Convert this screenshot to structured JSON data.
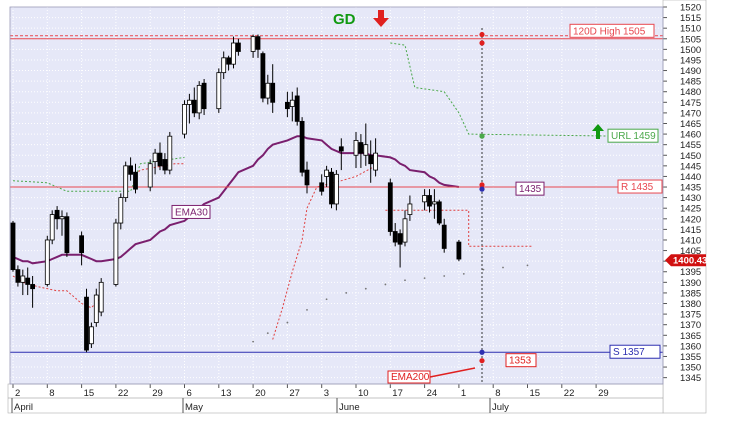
{
  "chart_data": {
    "type": "candlestick",
    "title": "",
    "xlabel": "",
    "ylabel": "",
    "ylim": [
      1342,
      1520
    ],
    "y_ticks": [
      1345,
      1350,
      1355,
      1360,
      1365,
      1370,
      1375,
      1380,
      1385,
      1390,
      1395,
      1400,
      1405,
      1410,
      1415,
      1420,
      1425,
      1430,
      1435,
      1440,
      1445,
      1450,
      1455,
      1460,
      1465,
      1470,
      1475,
      1480,
      1485,
      1490,
      1495,
      1500,
      1505,
      1510,
      1515,
      1520
    ],
    "x_day_labels": [
      "2",
      "8",
      "15",
      "22",
      "29",
      "6",
      "13",
      "20",
      "27",
      "3",
      "10",
      "17",
      "24",
      "1",
      "8",
      "15",
      "22",
      "29"
    ],
    "x_month_labels": [
      "April",
      "May",
      "June",
      "July"
    ],
    "grid": true,
    "colors": {
      "background": "#e6e8f8",
      "grid": "#ffffff",
      "price_line": "#e8474f",
      "support_line": "#2d2fb0",
      "ema": "#7a1f6e",
      "trailing_upper": "#4aa84a",
      "trailing_lower": "#e04040",
      "scatter": "#777777",
      "bullish": "#ffffff",
      "bearish": "#000000",
      "signal_up": "#119911",
      "signal_down": "#e02020"
    },
    "candles": [
      {
        "o": 1418,
        "h": 1419,
        "l": 1395,
        "c": 1396
      },
      {
        "o": 1396,
        "h": 1398,
        "l": 1388,
        "c": 1390
      },
      {
        "o": 1390,
        "h": 1396,
        "l": 1384,
        "c": 1393
      },
      {
        "o": 1392,
        "h": 1397,
        "l": 1384,
        "c": 1389
      },
      {
        "o": 1389,
        "h": 1393,
        "l": 1378,
        "c": 1387
      },
      {
        "o": 1389,
        "h": 1412,
        "l": 1388,
        "c": 1410
      },
      {
        "o": 1410,
        "h": 1424,
        "l": 1408,
        "c": 1422
      },
      {
        "o": 1424,
        "h": 1426,
        "l": 1415,
        "c": 1420
      },
      {
        "o": 1420,
        "h": 1424,
        "l": 1412,
        "c": 1421
      },
      {
        "o": 1421,
        "h": 1423,
        "l": 1402,
        "c": 1404
      },
      {
        "o": 1412,
        "h": 1414,
        "l": 1398,
        "c": 1404
      },
      {
        "o": 1383,
        "h": 1387,
        "l": 1357,
        "c": 1358
      },
      {
        "o": 1361,
        "h": 1371,
        "l": 1359,
        "c": 1369
      },
      {
        "o": 1371,
        "h": 1387,
        "l": 1369,
        "c": 1384
      },
      {
        "o": 1376,
        "h": 1392,
        "l": 1374,
        "c": 1390
      },
      {
        "o": 1389,
        "h": 1420,
        "l": 1388,
        "c": 1418
      },
      {
        "o": 1418,
        "h": 1432,
        "l": 1415,
        "c": 1430
      },
      {
        "o": 1430,
        "h": 1447,
        "l": 1428,
        "c": 1445
      },
      {
        "o": 1445,
        "h": 1449,
        "l": 1438,
        "c": 1441
      },
      {
        "o": 1442,
        "h": 1446,
        "l": 1432,
        "c": 1434
      },
      {
        "o": 1435,
        "h": 1448,
        "l": 1433,
        "c": 1446
      },
      {
        "o": 1447,
        "h": 1453,
        "l": 1441,
        "c": 1451
      },
      {
        "o": 1451,
        "h": 1456,
        "l": 1443,
        "c": 1445
      },
      {
        "o": 1448,
        "h": 1451,
        "l": 1441,
        "c": 1443
      },
      {
        "o": 1443,
        "h": 1461,
        "l": 1441,
        "c": 1459
      },
      {
        "o": 1460,
        "h": 1476,
        "l": 1458,
        "c": 1474
      },
      {
        "o": 1474,
        "h": 1479,
        "l": 1465,
        "c": 1476
      },
      {
        "o": 1476,
        "h": 1482,
        "l": 1468,
        "c": 1470
      },
      {
        "o": 1470,
        "h": 1485,
        "l": 1467,
        "c": 1483
      },
      {
        "o": 1484,
        "h": 1486,
        "l": 1469,
        "c": 1472
      },
      {
        "o": 1472,
        "h": 1491,
        "l": 1470,
        "c": 1489
      },
      {
        "o": 1489,
        "h": 1499,
        "l": 1486,
        "c": 1496
      },
      {
        "o": 1496,
        "h": 1497,
        "l": 1490,
        "c": 1493
      },
      {
        "o": 1493,
        "h": 1506,
        "l": 1491,
        "c": 1503
      },
      {
        "o": 1503,
        "h": 1505,
        "l": 1497,
        "c": 1499
      },
      {
        "o": 1499,
        "h": 1507,
        "l": 1496,
        "c": 1506
      },
      {
        "o": 1506,
        "h": 1507,
        "l": 1496,
        "c": 1500
      },
      {
        "o": 1498,
        "h": 1499,
        "l": 1475,
        "c": 1477
      },
      {
        "o": 1477,
        "h": 1488,
        "l": 1474,
        "c": 1484
      },
      {
        "o": 1484,
        "h": 1493,
        "l": 1470,
        "c": 1475
      },
      {
        "o": 1475,
        "h": 1480,
        "l": 1468,
        "c": 1472
      },
      {
        "o": 1473,
        "h": 1480,
        "l": 1466,
        "c": 1476
      },
      {
        "o": 1478,
        "h": 1482,
        "l": 1464,
        "c": 1466
      },
      {
        "o": 1466,
        "h": 1468,
        "l": 1440,
        "c": 1442
      },
      {
        "o": 1443,
        "h": 1447,
        "l": 1432,
        "c": 1436
      },
      {
        "o": 1437,
        "h": 1441,
        "l": 1431,
        "c": 1433
      },
      {
        "o": 1440,
        "h": 1445,
        "l": 1435,
        "c": 1443
      },
      {
        "o": 1442,
        "h": 1444,
        "l": 1425,
        "c": 1427
      },
      {
        "o": 1427,
        "h": 1443,
        "l": 1424,
        "c": 1441
      },
      {
        "o": 1454,
        "h": 1458,
        "l": 1443,
        "c": 1452
      },
      {
        "o": 1450,
        "h": 1461,
        "l": 1444,
        "c": 1457
      },
      {
        "o": 1456,
        "h": 1460,
        "l": 1444,
        "c": 1451
      },
      {
        "o": 1450,
        "h": 1465,
        "l": 1445,
        "c": 1455
      },
      {
        "o": 1450,
        "h": 1457,
        "l": 1437,
        "c": 1446
      },
      {
        "o": 1443,
        "h": 1458,
        "l": 1440,
        "c": 1451
      },
      {
        "o": 1437,
        "h": 1439,
        "l": 1412,
        "c": 1414
      },
      {
        "o": 1414,
        "h": 1418,
        "l": 1407,
        "c": 1409
      },
      {
        "o": 1413,
        "h": 1415,
        "l": 1397,
        "c": 1408
      },
      {
        "o": 1409,
        "h": 1424,
        "l": 1407,
        "c": 1420
      },
      {
        "o": 1422,
        "h": 1431,
        "l": 1419,
        "c": 1427
      },
      {
        "o": 1428,
        "h": 1434,
        "l": 1424,
        "c": 1431
      },
      {
        "o": 1431,
        "h": 1434,
        "l": 1423,
        "c": 1426
      },
      {
        "o": 1427,
        "h": 1434,
        "l": 1420,
        "c": 1428
      },
      {
        "o": 1428,
        "h": 1429,
        "l": 1417,
        "c": 1418
      },
      {
        "o": 1417,
        "h": 1420,
        "l": 1404,
        "c": 1406
      },
      {
        "o": 1409,
        "h": 1410,
        "l": 1400,
        "c": 1401
      }
    ],
    "ema30": [
      1402,
      1401,
      1400,
      1400,
      1399,
      1400,
      1401,
      1402,
      1403,
      1403,
      1403,
      1402,
      1401,
      1400,
      1400,
      1401,
      1402,
      1404,
      1406,
      1408,
      1410,
      1412,
      1414,
      1415,
      1417,
      1419,
      1421,
      1423,
      1425,
      1427,
      1430,
      1433,
      1436,
      1439,
      1442,
      1445,
      1448,
      1450,
      1453,
      1455,
      1457,
      1458,
      1459,
      1459,
      1458,
      1457,
      1455,
      1453,
      1452,
      1451,
      1451,
      1451,
      1451,
      1450,
      1450,
      1449,
      1448,
      1446,
      1445,
      1443,
      1442,
      1440,
      1439,
      1437,
      1436,
      1435
    ],
    "levels": [
      {
        "label": "120D High 1505",
        "value": 1505,
        "color": "#e8474f"
      },
      {
        "label": "R 1435",
        "value": 1435,
        "color": "#e8474f"
      },
      {
        "label": "S 1357",
        "value": 1357,
        "color": "#2d2fb0"
      }
    ],
    "labels": {
      "ema30": "EMA30",
      "ema200": "EMA200",
      "trail_upper": "URL 1459",
      "ema_value": "1435",
      "ema200_value": "1353",
      "signal": "GD",
      "last_price": "1400.43"
    },
    "last_price": 1400.43
  }
}
